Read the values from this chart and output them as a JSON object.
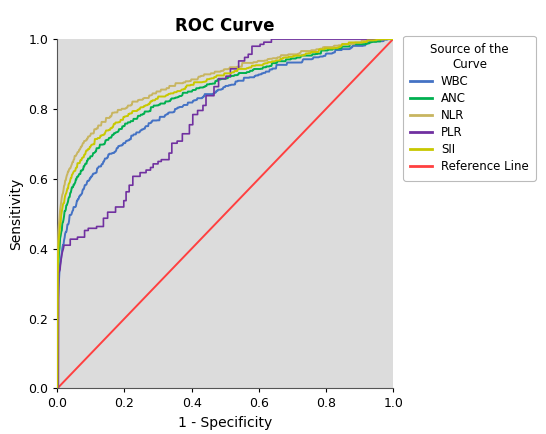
{
  "title": "ROC Curve",
  "xlabel": "1 - Specificity",
  "ylabel": "Sensitivity",
  "legend_title": "Source of the\nCurve",
  "xlim": [
    0.0,
    1.0
  ],
  "ylim": [
    0.0,
    1.0
  ],
  "xticks": [
    0.0,
    0.2,
    0.4,
    0.6,
    0.8,
    1.0
  ],
  "yticks": [
    0.0,
    0.2,
    0.4,
    0.6,
    0.8,
    1.0
  ],
  "background_color": "#dcdcdc",
  "figure_background": "#ffffff",
  "curves": [
    {
      "name": "WBC",
      "color": "#4472c4",
      "alpha": 0.22,
      "zorder": 5
    },
    {
      "name": "ANC",
      "color": "#00b050",
      "alpha": 0.18,
      "zorder": 6
    },
    {
      "name": "NLR",
      "color": "#c8b560",
      "alpha": 0.14,
      "zorder": 7
    },
    {
      "name": "PLR",
      "color": "#7030a0",
      "alpha": 0.55,
      "zorder": 8,
      "plr": true
    },
    {
      "name": "SII",
      "color": "#c8c800",
      "alpha": 0.16,
      "zorder": 9
    },
    {
      "name": "Reference Line",
      "color": "#ff4040",
      "alpha": 1.0,
      "zorder": 3,
      "ref": true
    }
  ],
  "legend_fontsize": 8.5,
  "title_fontsize": 12,
  "axis_label_fontsize": 10,
  "tick_fontsize": 9
}
